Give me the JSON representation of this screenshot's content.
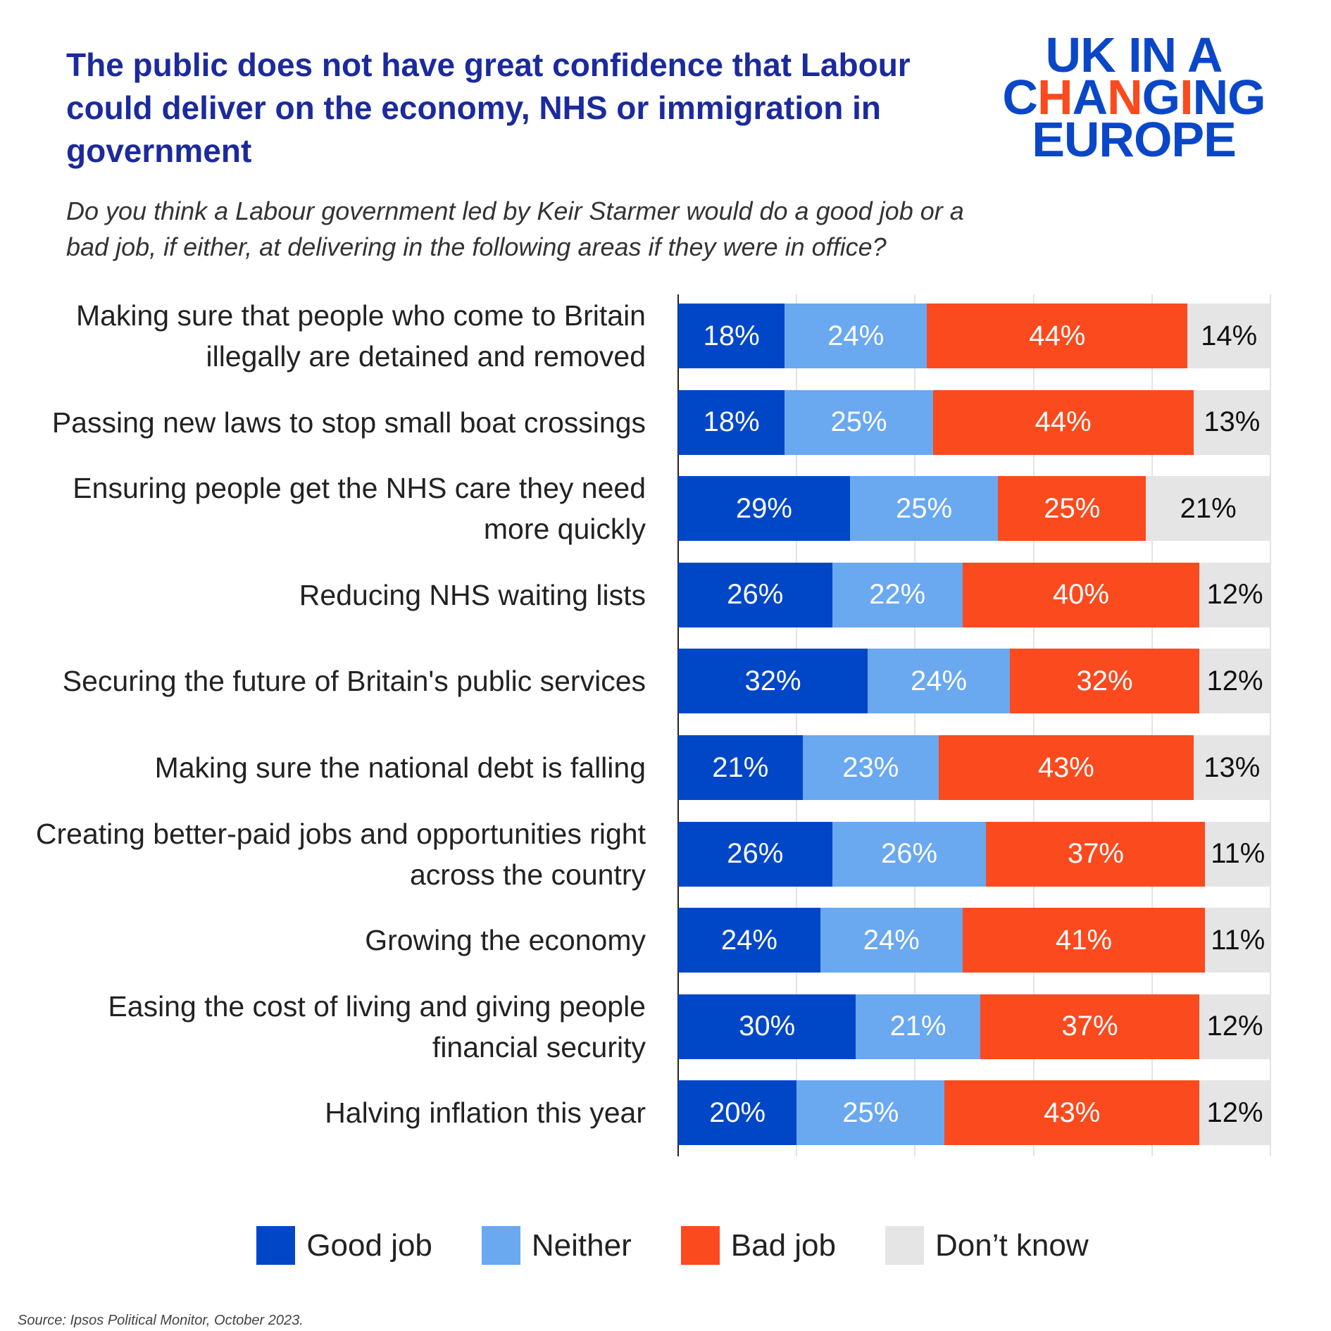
{
  "header": {
    "title": "The public does not have great confidence that Labour could deliver on the economy, NHS or immigration in government",
    "subtitle": "Do you think a Labour government led by Keir Starmer would do a good job or a bad job, if either, at delivering in the following areas if they were in office?",
    "logo": "UK IN A CHANGING EUROPE"
  },
  "footer": {
    "source": "Source: Ipsos Political Monitor, October 2023."
  },
  "chart_data": {
    "type": "bar",
    "orientation": "horizontal",
    "stacked": true,
    "xlim": [
      0,
      100
    ],
    "grid": true,
    "legend_position": "bottom",
    "categories": [
      "Making sure that people who come to Britain illegally are detained and removed",
      "Passing new laws to stop small boat crossings",
      "Ensuring people get the NHS care they need more quickly",
      "Reducing NHS waiting lists",
      "Securing the future of Britain's public services",
      "Making sure the national debt is falling",
      "Creating better-paid jobs and opportunities right across the country",
      "Growing the economy",
      "Easing the cost of living and giving people financial security",
      "Halving inflation this year"
    ],
    "series": [
      {
        "name": "Good job",
        "color": "#0047c8",
        "label_color": "#ffffff",
        "values": [
          18,
          18,
          29,
          26,
          32,
          21,
          26,
          24,
          30,
          20
        ]
      },
      {
        "name": "Neither",
        "color": "#6aa8f0",
        "label_color": "#ffffff",
        "values": [
          24,
          25,
          25,
          22,
          24,
          23,
          26,
          24,
          21,
          25
        ]
      },
      {
        "name": "Bad job",
        "color": "#fa4a1e",
        "label_color": "#ffffff",
        "values": [
          44,
          44,
          25,
          40,
          32,
          43,
          37,
          41,
          37,
          43
        ]
      },
      {
        "name": "Don’t know",
        "color": "#e5e5e5",
        "label_color": "#111111",
        "values": [
          14,
          13,
          21,
          12,
          12,
          13,
          11,
          11,
          12,
          12
        ]
      }
    ]
  }
}
